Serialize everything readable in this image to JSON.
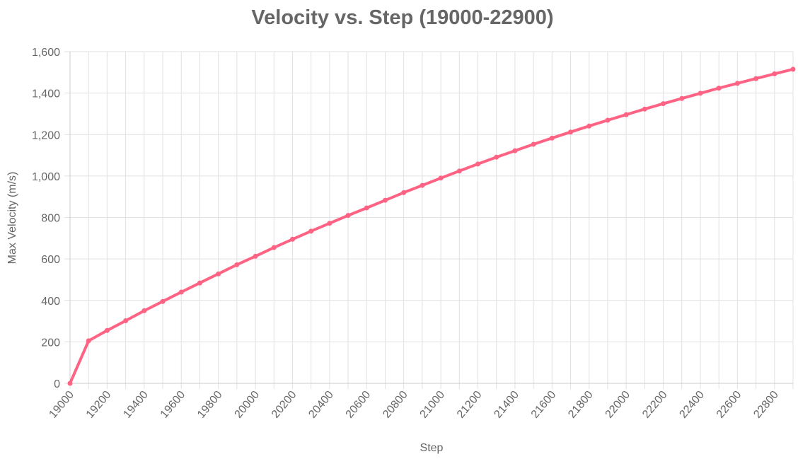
{
  "chart_data": {
    "type": "line",
    "title": "Velocity vs. Step (19000-22900)",
    "xlabel": "Step",
    "ylabel": "Max Velocity (m/s)",
    "xlim": [
      19000,
      22900
    ],
    "ylim": [
      0,
      1600
    ],
    "grid": true,
    "legend": "none",
    "y_ticks": [
      "0",
      "200",
      "400",
      "600",
      "800",
      "1,000",
      "1,200",
      "1,400",
      "1,600"
    ],
    "x_ticks": [
      "19000",
      "19200",
      "19400",
      "19600",
      "19800",
      "20000",
      "20200",
      "20400",
      "20600",
      "20800",
      "21000",
      "21200",
      "21400",
      "21600",
      "21800",
      "22000",
      "22200",
      "22400",
      "22600",
      "22800"
    ],
    "color": "#ff6384",
    "series": [
      {
        "x": [
          19000,
          19100,
          19200,
          19300,
          19400,
          19500,
          19600,
          19700,
          19800,
          19900,
          20000,
          20100,
          20200,
          20300,
          20400,
          20500,
          20600,
          20700,
          20800,
          20900,
          21000,
          21100,
          21200,
          21300,
          21400,
          21500,
          21600,
          21700,
          21800,
          21900,
          22000,
          22100,
          22200,
          22300,
          22400,
          22500,
          22600,
          22700,
          22800,
          22900
        ],
        "values": [
          0,
          205,
          255,
          302,
          350,
          395,
          440,
          484,
          528,
          572,
          613,
          655,
          695,
          734,
          772,
          810,
          846,
          883,
          920,
          955,
          990,
          1024,
          1058,
          1091,
          1122,
          1153,
          1183,
          1212,
          1241,
          1269,
          1296,
          1323,
          1349,
          1374,
          1399,
          1424,
          1447,
          1470,
          1493,
          1515
        ]
      }
    ]
  }
}
